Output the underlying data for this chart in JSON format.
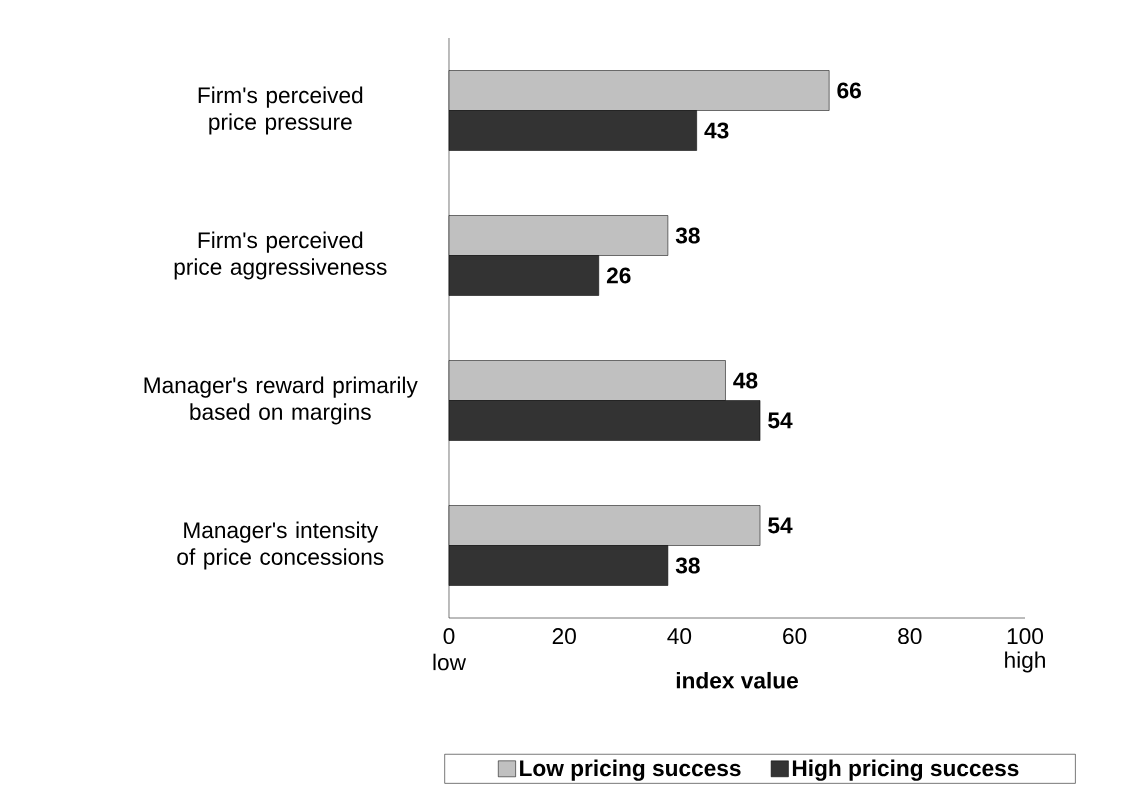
{
  "chart_data": {
    "type": "bar",
    "orientation": "horizontal",
    "categories": [
      "Firm's perceived price pressure",
      "Firm's perceived price aggressiveness",
      "Manager's reward primarily based on margins",
      "Manager's intensity of price concessions"
    ],
    "series": [
      {
        "name": "Low pricing success",
        "color": "#c0c0c0",
        "values": [
          66,
          38,
          48,
          54
        ]
      },
      {
        "name": "High pricing success",
        "color": "#333333",
        "values": [
          43,
          26,
          54,
          38
        ]
      }
    ],
    "xlim": [
      0,
      100
    ],
    "xticks": [
      0,
      20,
      40,
      60,
      80,
      100
    ],
    "xlabel": "index value",
    "annotations": [
      "low",
      "high"
    ],
    "data_labels": true,
    "legend": "bottom",
    "grid": false
  }
}
